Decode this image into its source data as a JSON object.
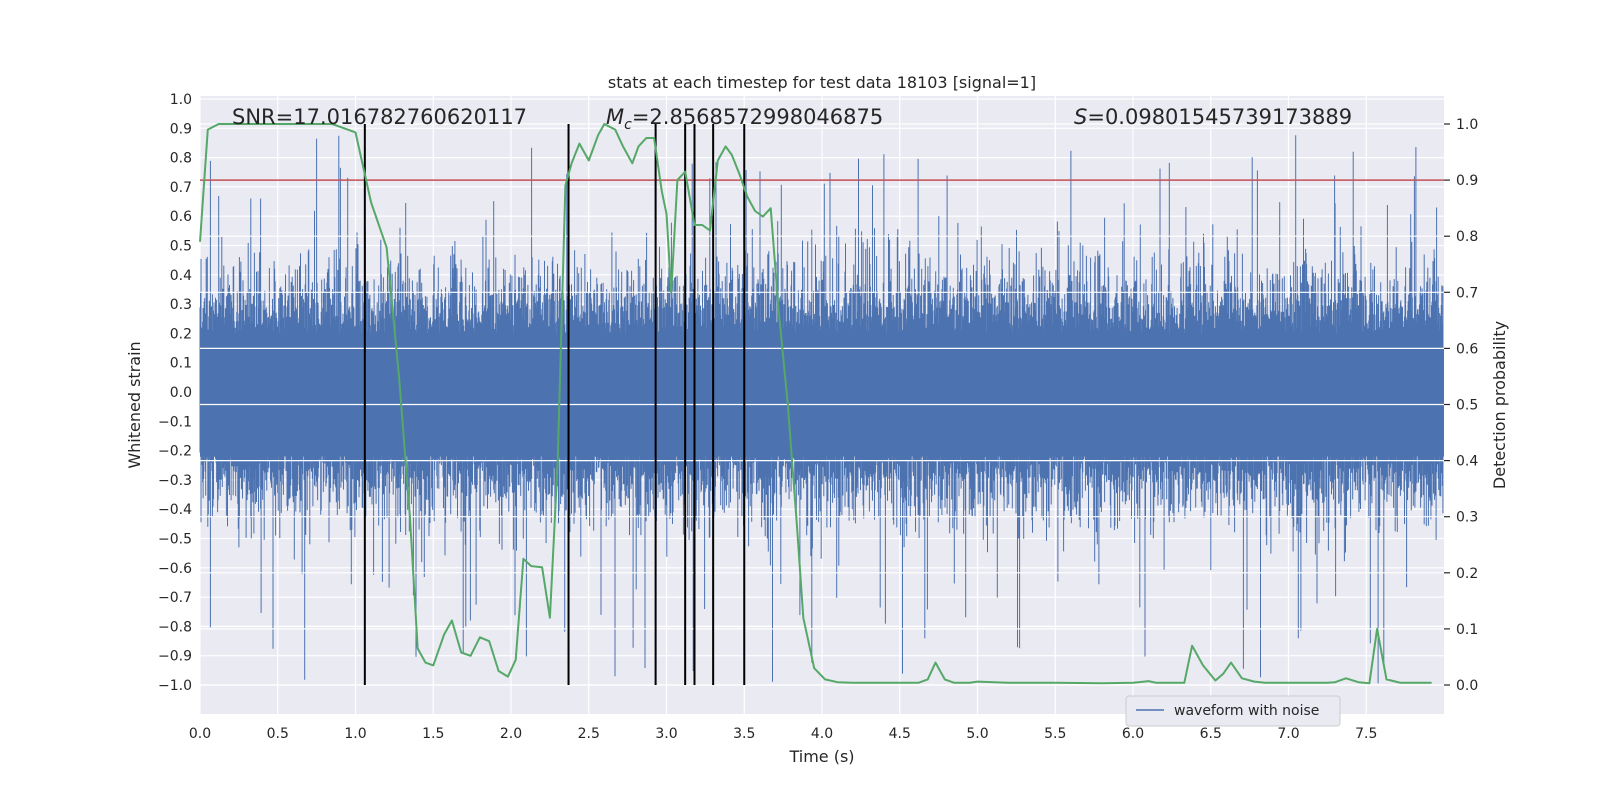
{
  "chart_data": {
    "type": "line",
    "title": "stats at each timestep for test data 18103 [signal=1]",
    "xlabel": "Time (s)",
    "ylabel": "Whitened strain",
    "ylabel_right": "Detection probability",
    "xlim": [
      0,
      8.0
    ],
    "ylim": [
      -1.1,
      1.0
    ],
    "ylim_right": [
      -0.045,
      1.045
    ],
    "x_ticks": [
      0.0,
      0.5,
      1.0,
      1.5,
      2.0,
      2.5,
      3.0,
      3.5,
      4.0,
      4.5,
      5.0,
      5.5,
      6.0,
      6.5,
      7.0,
      7.5
    ],
    "x_tick_labels": [
      "0.0",
      "0.5",
      "1.0",
      "1.5",
      "2.0",
      "2.5",
      "3.0",
      "3.5",
      "4.0",
      "4.5",
      "5.0",
      "5.5",
      "6.0",
      "6.5",
      "7.0",
      "7.5"
    ],
    "y_ticks": [
      1.0,
      0.9,
      0.8,
      0.7,
      0.6,
      0.5,
      0.4,
      0.3,
      0.2,
      0.1,
      0.0,
      -0.1,
      -0.2,
      -0.3,
      -0.4,
      -0.5,
      -0.6,
      -0.7,
      -0.8,
      -0.9,
      -1.0
    ],
    "y_tick_labels": [
      "1.0",
      "0.9",
      "0.8",
      "0.7",
      "0.6",
      "0.5",
      "0.4",
      "0.3",
      "0.2",
      "0.1",
      "0.0",
      "−0.1",
      "−0.2",
      "−0.3",
      "−0.4",
      "−0.5",
      "−0.6",
      "−0.7",
      "−0.8",
      "−0.9",
      "−1.0"
    ],
    "y_right_ticks": [
      1.0,
      0.9,
      0.8,
      0.7,
      0.6,
      0.5,
      0.4,
      0.3,
      0.2,
      0.1,
      0.0
    ],
    "y_right_tick_labels": [
      "1.0",
      "0.9",
      "0.8",
      "0.7",
      "0.6",
      "0.5",
      "0.4",
      "0.3",
      "0.2",
      "0.1",
      "0.0"
    ],
    "annotations": {
      "snr": "SNR=17.016782760620117",
      "mc_symbol": "M",
      "mc_sub": "c",
      "mc_value": "=2.856857299804687​5",
      "s_symbol": "S",
      "s_value": "=0.09801545739173889"
    },
    "threshold": 0.9,
    "event_lines_x": [
      1.06,
      2.37,
      2.93,
      3.12,
      3.18,
      3.3,
      3.5
    ],
    "legend": {
      "label": "waveform with noise",
      "position": "lower-right"
    },
    "noise_amplitude_main": 0.5,
    "noise_amplitude_bands": [
      [
        0,
        0.15
      ],
      [
        -0.05,
        0.15
      ]
    ],
    "series": [
      {
        "name": "Detection probability",
        "color": "#55a868",
        "x": [
          0.0,
          0.05,
          0.12,
          0.2,
          0.3,
          0.45,
          0.6,
          0.75,
          0.85,
          0.95,
          1.0,
          1.1,
          1.2,
          1.28,
          1.35,
          1.4,
          1.45,
          1.5,
          1.57,
          1.62,
          1.68,
          1.74,
          1.8,
          1.86,
          1.92,
          1.98,
          2.03,
          2.08,
          2.13,
          2.2,
          2.25,
          2.3,
          2.35,
          2.39,
          2.44,
          2.5,
          2.56,
          2.6,
          2.67,
          2.72,
          2.78,
          2.82,
          2.87,
          2.92,
          2.97,
          3.0,
          3.03,
          3.07,
          3.12,
          3.18,
          3.23,
          3.28,
          3.33,
          3.38,
          3.42,
          3.47,
          3.52,
          3.57,
          3.62,
          3.67,
          3.72,
          3.78,
          3.84,
          3.88,
          3.95,
          4.02,
          4.1,
          4.2,
          4.35,
          4.5,
          4.62,
          4.68,
          4.73,
          4.79,
          4.85,
          4.95,
          5.0,
          5.2,
          5.5,
          5.8,
          6.0,
          6.1,
          6.15,
          6.2,
          6.27,
          6.33,
          6.38,
          6.45,
          6.53,
          6.58,
          6.63,
          6.7,
          6.78,
          6.85,
          6.9,
          7.0,
          7.15,
          7.25,
          7.3,
          7.37,
          7.45,
          7.52,
          7.57,
          7.63,
          7.72,
          7.8,
          7.85,
          7.92
        ],
        "values": [
          0.79,
          0.99,
          1.0,
          1.0,
          1.0,
          1.0,
          1.0,
          1.0,
          1.0,
          0.99,
          0.985,
          0.86,
          0.78,
          0.55,
          0.3,
          0.065,
          0.04,
          0.035,
          0.09,
          0.115,
          0.058,
          0.052,
          0.085,
          0.078,
          0.025,
          0.015,
          0.045,
          0.225,
          0.212,
          0.21,
          0.12,
          0.395,
          0.89,
          0.93,
          0.965,
          0.935,
          0.98,
          1.0,
          0.99,
          0.96,
          0.93,
          0.96,
          0.975,
          0.975,
          0.88,
          0.84,
          0.7,
          0.9,
          0.915,
          0.82,
          0.82,
          0.81,
          0.935,
          0.96,
          0.945,
          0.91,
          0.87,
          0.845,
          0.835,
          0.85,
          0.67,
          0.5,
          0.28,
          0.12,
          0.03,
          0.01,
          0.005,
          0.004,
          0.004,
          0.004,
          0.004,
          0.01,
          0.04,
          0.01,
          0.004,
          0.004,
          0.006,
          0.004,
          0.004,
          0.003,
          0.004,
          0.007,
          0.004,
          0.004,
          0.004,
          0.004,
          0.07,
          0.035,
          0.008,
          0.02,
          0.04,
          0.012,
          0.006,
          0.004,
          0.004,
          0.004,
          0.004,
          0.004,
          0.005,
          0.012,
          0.005,
          0.003,
          0.1,
          0.01,
          0.004,
          0.004,
          0.004,
          0.004
        ]
      }
    ]
  },
  "colors": {
    "background": "#eaeaf2",
    "noise": "#4c72b0",
    "probability": "#55a868",
    "threshold": "#c44e52",
    "event_lines": "#000000",
    "grid": "#ffffff"
  }
}
